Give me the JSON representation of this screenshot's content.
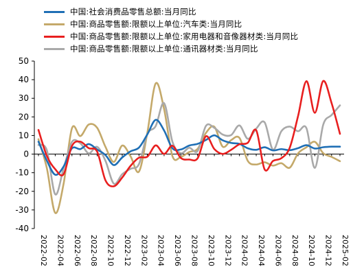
{
  "chart_data": {
    "type": "line",
    "title": "",
    "xlabel": "",
    "ylabel": "",
    "ylim": [
      -40,
      50
    ],
    "yticks": [
      -40,
      -30,
      -20,
      -10,
      0,
      10,
      20,
      30,
      40,
      50
    ],
    "legend_position": "top-left",
    "grid": false,
    "x": [
      "2022-02",
      "2022-03",
      "2022-04",
      "2022-05",
      "2022-06",
      "2022-07",
      "2022-08",
      "2022-09",
      "2022-10",
      "2022-11",
      "2022-12",
      "2023-01",
      "2023-02",
      "2023-03",
      "2023-04",
      "2023-05",
      "2023-06",
      "2023-07",
      "2023-08",
      "2023-09",
      "2023-10",
      "2023-11",
      "2023-12",
      "2024-01",
      "2024-02",
      "2024-03",
      "2024-04",
      "2024-05",
      "2024-06",
      "2024-07",
      "2024-08",
      "2024-09",
      "2024-10",
      "2024-11",
      "2024-12",
      "2025-01",
      "2025-02"
    ],
    "x_tick_labels": [
      "2022-02",
      "2022-04",
      "2022-06",
      "2022-08",
      "2022-10",
      "2022-12",
      "2023-02",
      "2023-04",
      "2023-06",
      "2023-08",
      "2023-10",
      "2023-12",
      "2024-02",
      "2024-04",
      "2024-06",
      "2024-08",
      "2024-10",
      "2024-12",
      "2025-02"
    ],
    "series": [
      {
        "name": "中国:社会消费品零售总额:当月同比",
        "color": "#1f6fb5",
        "values": [
          6.7,
          -3.5,
          -11.1,
          -6.7,
          3.1,
          2.7,
          5.4,
          2.5,
          -0.5,
          -5.9,
          -1.8,
          1.5,
          3.5,
          10.6,
          18.4,
          12.7,
          3.1,
          2.5,
          4.6,
          5.5,
          7.6,
          10.1,
          7.4,
          6.0,
          5.5,
          3.1,
          2.3,
          3.7,
          2.0,
          2.7,
          2.1,
          3.2,
          4.8,
          3.0,
          3.7,
          4.0,
          4.0
        ],
        "plot": [
          6.7,
          -3.5,
          -11.1,
          -6.7,
          3.1,
          2.7,
          5.4,
          2.5,
          -0.5,
          -5.9,
          -1.8,
          1.5,
          3.5,
          10.6,
          18.4,
          12.7,
          3.1,
          2.5,
          4.6,
          5.5,
          7.6,
          10.1,
          7.4,
          6.0,
          5.5,
          3.1,
          2.3,
          3.7,
          2.0,
          2.7,
          2.1,
          3.2,
          4.8,
          3.0,
          3.7,
          4.0,
          4.0
        ]
      },
      {
        "name": "中国:商品零售额:限额以上单位:汽车类:当月同比",
        "color": "#c4a96a",
        "values": [
          8.0,
          -7.5,
          -31.6,
          -16.0,
          13.9,
          9.7,
          15.9,
          14.2,
          3.9,
          -4.2,
          4.6,
          -1.2,
          -9.4,
          11.5,
          38.0,
          24.2,
          -1.1,
          -1.5,
          1.1,
          2.8,
          11.4,
          14.7,
          4.0,
          7.5,
          8.7,
          -3.7,
          -5.6,
          -4.4,
          -6.2,
          -4.9,
          -7.3,
          0.4,
          3.7,
          6.6,
          0.5,
          -1.5,
          -3.8
        ],
        "plot": [
          8.0,
          -7.5,
          -31.6,
          -16.0,
          13.9,
          9.7,
          15.9,
          14.2,
          3.9,
          -4.2,
          4.6,
          -1.2,
          -9.4,
          11.5,
          38.0,
          24.2,
          -1.1,
          -1.5,
          1.1,
          2.8,
          11.4,
          14.7,
          4.0,
          7.5,
          8.7,
          -3.7,
          -5.6,
          -4.4,
          -6.2,
          -4.9,
          -7.3,
          0.4,
          3.7,
          6.6,
          0.5,
          -1.5,
          -3.8
        ]
      },
      {
        "name": "中国:商品零售额:限额以上单位:家用电器和音像器材类:当月同比",
        "color": "#e81f1f",
        "values": [
          13.0,
          -1.0,
          -8.1,
          -10.8,
          4.4,
          6.7,
          3.2,
          1.4,
          -14.1,
          -17.3,
          -12.6,
          -6.3,
          -1.9,
          -1.4,
          4.7,
          0.1,
          4.5,
          -2.1,
          -2.9,
          -2.3,
          9.6,
          2.7,
          0.1,
          2.3,
          5.3,
          6.1,
          12.8,
          -8.2,
          -3.7,
          -2.2,
          3.4,
          20.5,
          39.2,
          22.2,
          39.3,
          27.4,
          10.9
        ],
        "plot": [
          13.0,
          -1.0,
          -8.1,
          -10.8,
          4.4,
          6.7,
          3.2,
          1.4,
          -14.1,
          -17.3,
          -12.6,
          -6.3,
          -1.9,
          -1.4,
          4.7,
          0.1,
          4.5,
          -2.1,
          -2.9,
          -2.3,
          9.6,
          2.7,
          0.1,
          2.3,
          5.3,
          6.1,
          12.8,
          -8.2,
          -3.7,
          -2.2,
          3.4,
          20.5,
          39.2,
          22.2,
          39.3,
          27.4,
          10.9
        ]
      },
      {
        "name": "中国:商品零售额:限额以上单位:通讯器材类:当月同比",
        "color": "#a9a9a9",
        "values": [
          4.9,
          2.1,
          -21.6,
          -7.7,
          6.6,
          5.8,
          0.4,
          3.9,
          -3.6,
          -15.9,
          -10.8,
          -7.9,
          -5.4,
          10.8,
          15.1,
          27.4,
          6.6,
          0.5,
          3.4,
          1.6,
          15.2,
          14.1,
          10.5,
          10.2,
          15.4,
          8.2,
          13.7,
          17.1,
          2.4,
          12.3,
          14.8,
          12.3,
          13.9,
          -7.4,
          15.8,
          21.0,
          26.2
        ],
        "plot": [
          4.9,
          2.1,
          -21.6,
          -7.7,
          6.6,
          5.8,
          0.4,
          3.9,
          -3.6,
          -15.9,
          -10.8,
          -7.9,
          -5.4,
          10.8,
          15.1,
          27.4,
          6.6,
          0.5,
          3.4,
          1.6,
          15.2,
          14.1,
          10.5,
          10.2,
          15.4,
          8.2,
          13.7,
          17.1,
          2.4,
          12.3,
          14.8,
          12.3,
          13.9,
          -7.4,
          15.8,
          21.0,
          26.2
        ]
      }
    ]
  }
}
